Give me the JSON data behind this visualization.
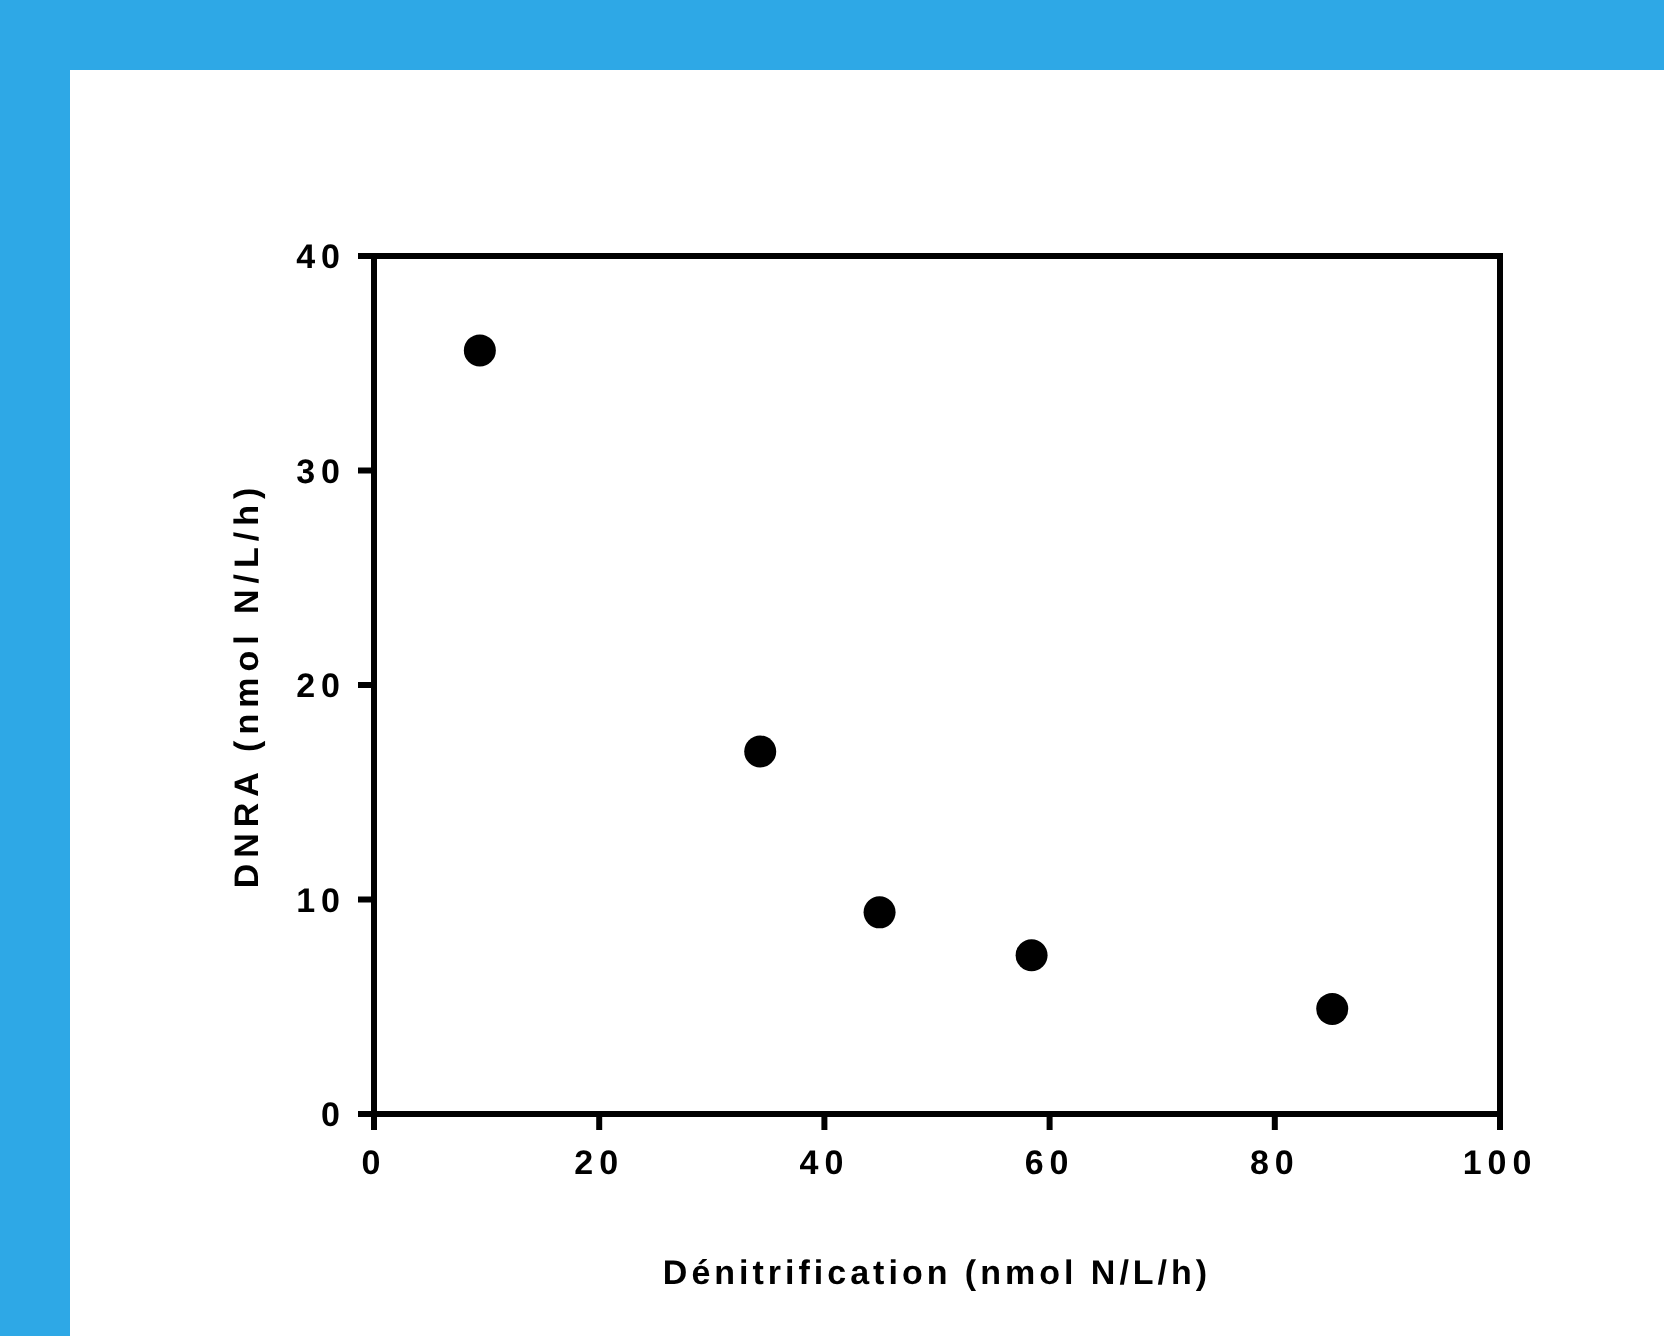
{
  "chart_data": {
    "type": "scatter",
    "xlabel": "Dénitrification (nmol N/L/h)",
    "ylabel": "DNRA (nmol N/L/h)",
    "x": [
      9.4,
      34.3,
      44.9,
      58.4,
      85.1
    ],
    "series": [
      {
        "color": "#000000",
        "values": [
          35.6,
          16.9,
          9.4,
          7.4,
          4.9
        ]
      }
    ],
    "xlim": [
      0,
      100
    ],
    "xticks": [
      0,
      20,
      40,
      60,
      80,
      100
    ],
    "ylim": [
      0,
      40
    ],
    "yticks": [
      0,
      10,
      20,
      30,
      40
    ],
    "marker": "circle",
    "grid": false
  }
}
